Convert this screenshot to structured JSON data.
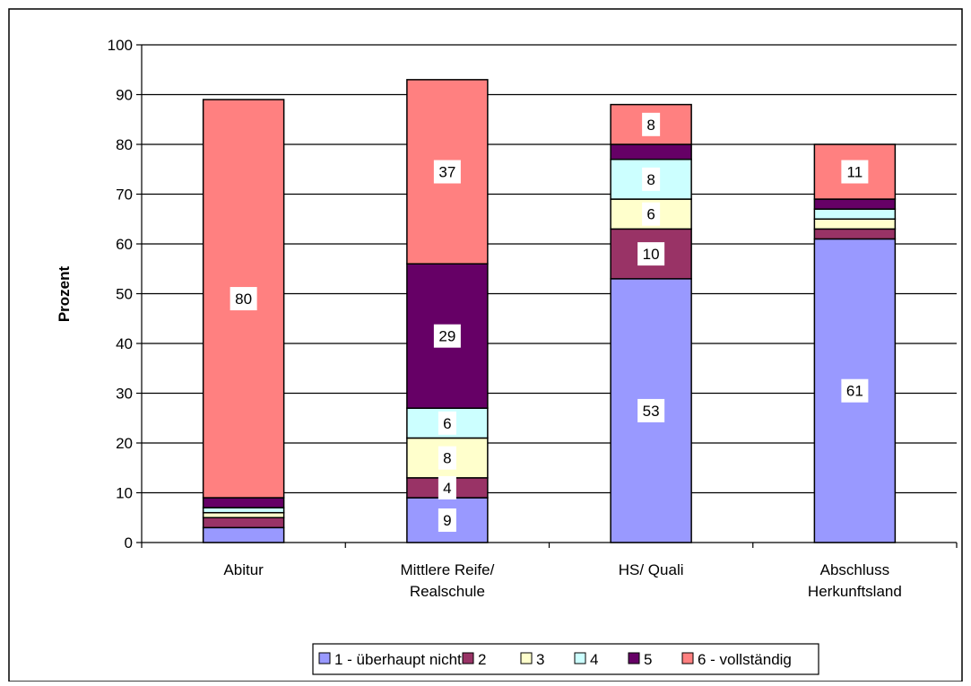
{
  "chart_data": {
    "type": "bar",
    "stacked": true,
    "categories": [
      [
        "Abitur"
      ],
      [
        "Mittlere Reife/",
        "Realschule"
      ],
      [
        "HS/ Quali"
      ],
      [
        "Abschluss",
        "Herkunftsland"
      ]
    ],
    "ylabel": "Prozent",
    "ylim": [
      0,
      100
    ],
    "yticks": [
      0,
      10,
      20,
      30,
      40,
      50,
      60,
      70,
      80,
      90,
      100
    ],
    "grid": true,
    "legend_position": "bottom",
    "series": [
      {
        "name": "1 - überhaupt nicht",
        "color": "#9999ff",
        "values": [
          3,
          9,
          53,
          61
        ],
        "labels": [
          "",
          "9",
          "53",
          "61"
        ]
      },
      {
        "name": "2",
        "color": "#993366",
        "values": [
          2,
          4,
          10,
          2
        ],
        "labels": [
          "",
          "4",
          "10",
          ""
        ]
      },
      {
        "name": "3",
        "color": "#ffffcc",
        "values": [
          1,
          8,
          6,
          2
        ],
        "labels": [
          "",
          "8",
          "6",
          ""
        ]
      },
      {
        "name": "4",
        "color": "#ccffff",
        "values": [
          1,
          6,
          8,
          2
        ],
        "labels": [
          "",
          "6",
          "8",
          ""
        ]
      },
      {
        "name": "5",
        "color": "#660066",
        "values": [
          2,
          29,
          3,
          2
        ],
        "labels": [
          "",
          "29",
          "",
          ""
        ]
      },
      {
        "name": "6 - vollständig",
        "color": "#ff8080",
        "values": [
          80,
          37,
          8,
          11
        ],
        "labels": [
          "80",
          "37",
          "8",
          "11"
        ]
      }
    ]
  }
}
